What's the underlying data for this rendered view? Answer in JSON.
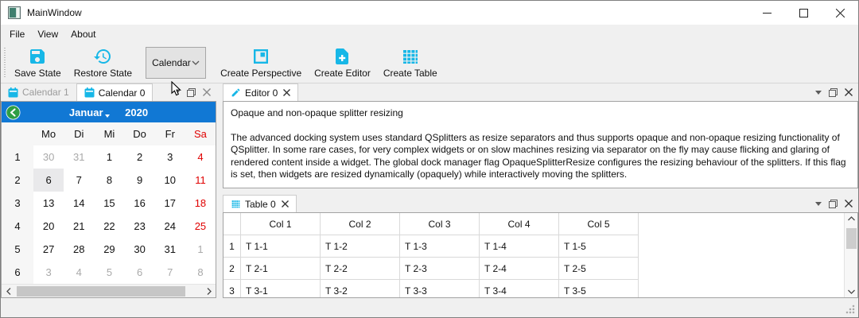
{
  "window": {
    "title": "MainWindow"
  },
  "menu": {
    "items": [
      "File",
      "View",
      "About"
    ]
  },
  "toolbar": {
    "save_label": "Save State",
    "restore_label": "Restore State",
    "combo_value": "Calendar",
    "create_perspective_label": "Create Perspective",
    "create_editor_label": "Create Editor",
    "create_table_label": "Create Table"
  },
  "calendar_panel": {
    "tabs": [
      {
        "label": "Calendar 1"
      },
      {
        "label": "Calendar 0"
      }
    ],
    "nav": {
      "month": "Januar",
      "year": "2020"
    },
    "day_headers": [
      "Mo",
      "Di",
      "Mi",
      "Do",
      "Fr",
      "Sa"
    ],
    "weeks": [
      {
        "num": "1",
        "days": [
          {
            "d": "30",
            "muted": true
          },
          {
            "d": "31",
            "muted": true
          },
          {
            "d": "1"
          },
          {
            "d": "2"
          },
          {
            "d": "3"
          },
          {
            "d": "4",
            "weekend": true
          }
        ]
      },
      {
        "num": "2",
        "days": [
          {
            "d": "6",
            "selected": true
          },
          {
            "d": "7"
          },
          {
            "d": "8"
          },
          {
            "d": "9"
          },
          {
            "d": "10"
          },
          {
            "d": "11",
            "weekend": true
          }
        ]
      },
      {
        "num": "3",
        "days": [
          {
            "d": "13"
          },
          {
            "d": "14"
          },
          {
            "d": "15"
          },
          {
            "d": "16"
          },
          {
            "d": "17"
          },
          {
            "d": "18",
            "weekend": true
          }
        ]
      },
      {
        "num": "4",
        "days": [
          {
            "d": "20"
          },
          {
            "d": "21"
          },
          {
            "d": "22"
          },
          {
            "d": "23"
          },
          {
            "d": "24"
          },
          {
            "d": "25",
            "weekend": true
          }
        ]
      },
      {
        "num": "5",
        "days": [
          {
            "d": "27"
          },
          {
            "d": "28"
          },
          {
            "d": "29"
          },
          {
            "d": "30"
          },
          {
            "d": "31"
          },
          {
            "d": "1",
            "muted": true
          }
        ]
      },
      {
        "num": "6",
        "days": [
          {
            "d": "3",
            "muted": true
          },
          {
            "d": "4",
            "muted": true
          },
          {
            "d": "5",
            "muted": true
          },
          {
            "d": "6",
            "muted": true
          },
          {
            "d": "7",
            "muted": true
          },
          {
            "d": "8",
            "muted": true
          }
        ]
      }
    ]
  },
  "editor_panel": {
    "tab_label": "Editor 0",
    "heading": "Opaque and non-opaque splitter resizing",
    "body": "The advanced docking system uses standard QSplitters as resize separators and thus supports opaque and non-opaque resizing functionality of QSplitter. In some rare cases, for very complex widgets or on slow machines resizing via separator on the fly may cause flicking and glaring of rendered content inside a widget. The global dock manager flag OpaqueSplitterResize configures the resizing behaviour of the splitters. If this flag is set, then widgets are resized dynamically (opaquely) while interactively moving the splitters."
  },
  "table_panel": {
    "tab_label": "Table 0",
    "columns": [
      "Col 1",
      "Col 2",
      "Col 3",
      "Col 4",
      "Col 5"
    ],
    "rows": [
      {
        "num": "1",
        "cells": [
          "T 1-1",
          "T 1-2",
          "T 1-3",
          "T 1-4",
          "T 1-5"
        ]
      },
      {
        "num": "2",
        "cells": [
          "T 2-1",
          "T 2-2",
          "T 2-3",
          "T 2-4",
          "T 2-5"
        ]
      },
      {
        "num": "3",
        "cells": [
          "T 3-1",
          "T 3-2",
          "T 3-3",
          "T 3-4",
          "T 3-5"
        ]
      }
    ]
  },
  "colors": {
    "accent": "#17b7e7",
    "calendar_header": "#1178d4",
    "back_button_green": "#2f9e44",
    "weekend_red": "#e00000",
    "muted_gray": "#a9a9a9"
  }
}
